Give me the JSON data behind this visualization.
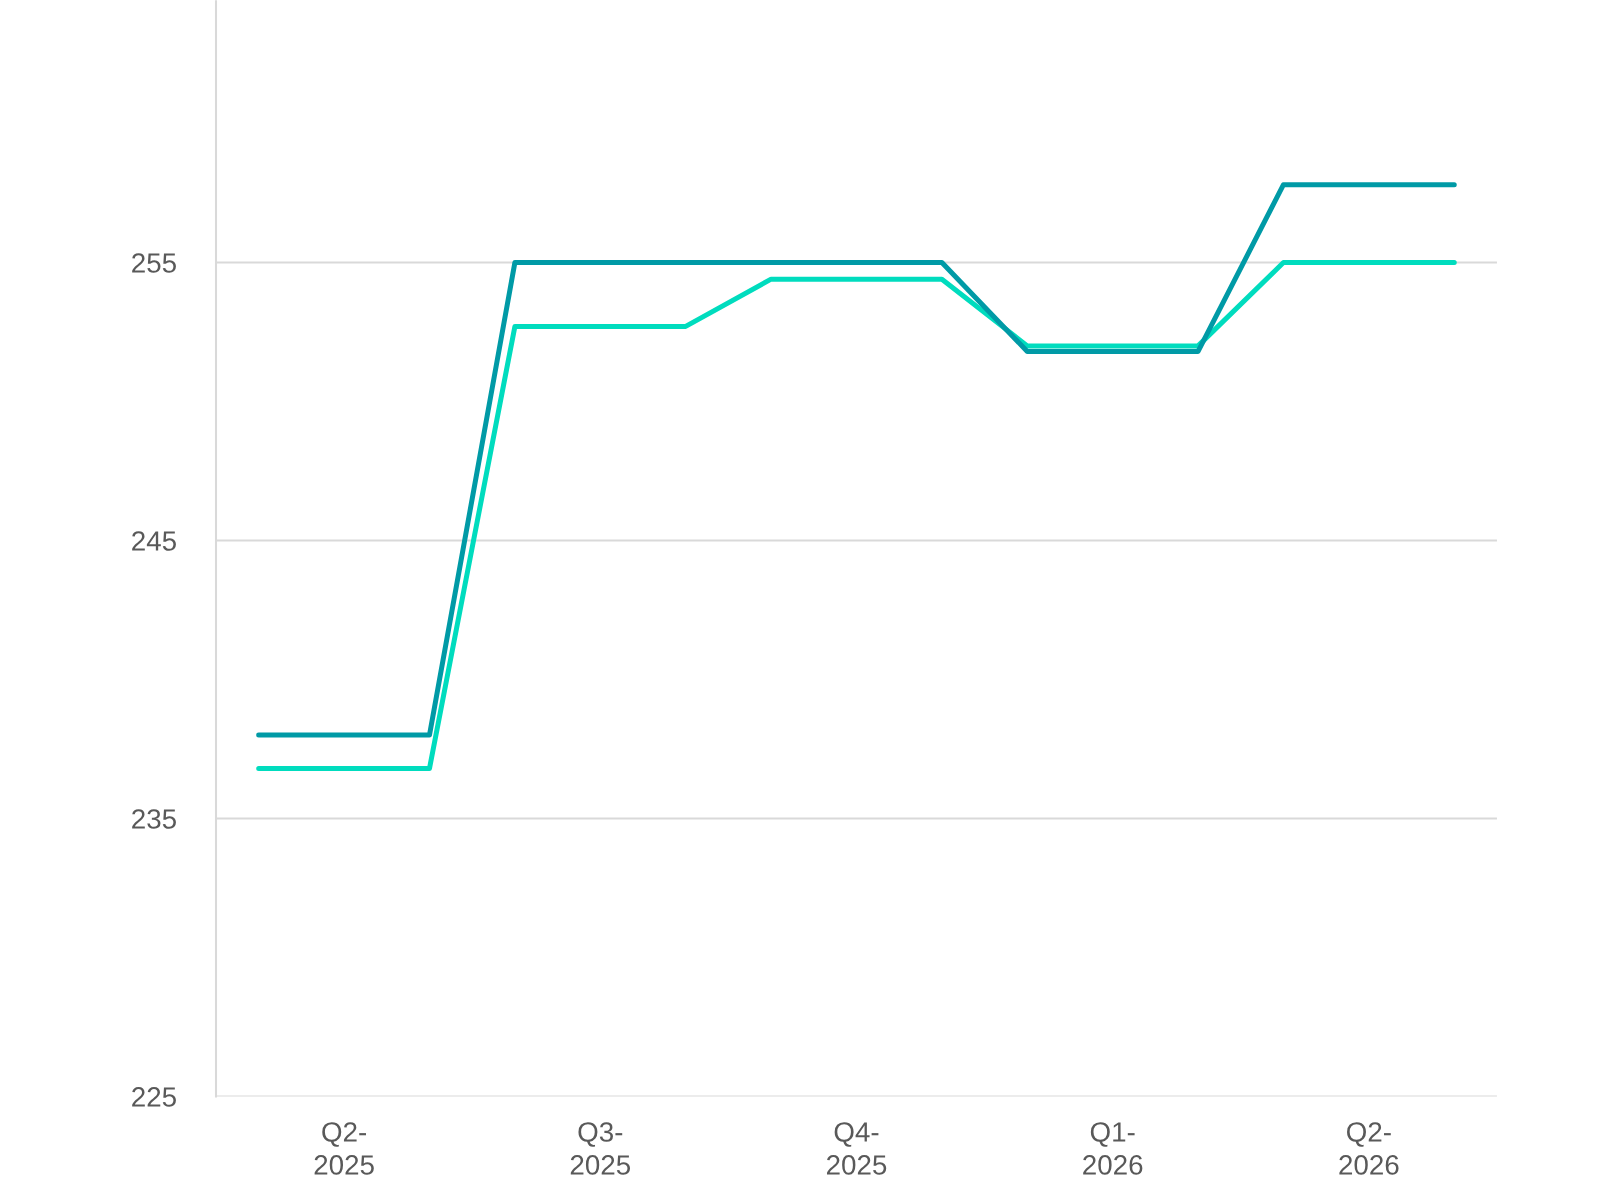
{
  "chart_data": {
    "type": "line",
    "categories": [
      null,
      "Q2-\n2025",
      null,
      null,
      "Q3-\n2025",
      null,
      null,
      "Q4-\n2025",
      null,
      null,
      "Q1-\n2026",
      null,
      null,
      "Q2-\n2026",
      null
    ],
    "series": [
      {
        "color": "#00DCBE",
        "values": [
          236.8,
          236.8,
          236.8,
          252.7,
          252.7,
          252.7,
          254.4,
          254.4,
          254.4,
          252.0,
          252.0,
          252.0,
          255,
          255,
          255
        ]
      },
      {
        "color": "#009AA6",
        "values": [
          238.0,
          238.0,
          238.0,
          255,
          255,
          255,
          255,
          255,
          255,
          251.8,
          251.8,
          251.8,
          257.8,
          257.8,
          257.8
        ]
      }
    ],
    "ylim": [
      225,
      264.4
    ],
    "yticks": [
      225,
      235,
      245,
      255
    ],
    "grid": "y",
    "line_style": "solid"
  }
}
